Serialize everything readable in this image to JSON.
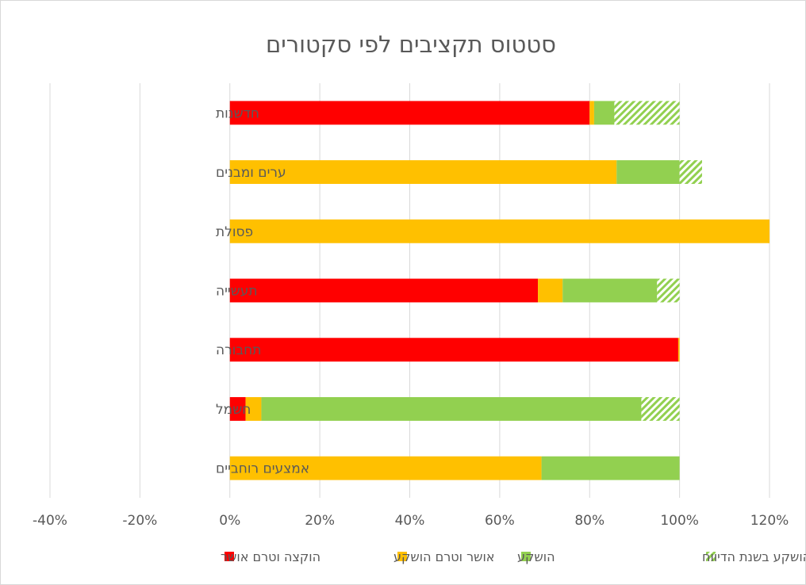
{
  "chart_data": {
    "type": "bar",
    "orientation": "horizontal",
    "stacked": true,
    "title": "סטטוס תקציבים לפי סקטורים",
    "categories": [
      "חדשנות",
      "ערים ומבנים",
      "פסולת",
      "תעשייה",
      "תחבורה",
      "חשמל",
      "אמצעים רוחביים"
    ],
    "series": [
      {
        "name": "הוקצה וטרם אושר",
        "color": "#ff0000",
        "pattern": "solid",
        "values": [
          80,
          0,
          0,
          68.5,
          99.7,
          3.5,
          0
        ]
      },
      {
        "name": "אושר וטרם הושקע",
        "color": "#ffc000",
        "pattern": "solid",
        "values": [
          1,
          86,
          120,
          5.5,
          0.3,
          3.5,
          69.3
        ]
      },
      {
        "name": "הושקע",
        "color": "#92d050",
        "pattern": "solid",
        "values": [
          4.5,
          14,
          0,
          21,
          0,
          84.5,
          30.7
        ]
      },
      {
        "name": "הושקע בשנת הדיווח",
        "color": "#92d050",
        "pattern": "hatched",
        "values": [
          14.5,
          5,
          0,
          5,
          0,
          8.5,
          0
        ]
      }
    ],
    "xlim": [
      -40,
      120
    ],
    "xticks": [
      -40,
      -20,
      0,
      20,
      40,
      60,
      80,
      100,
      120
    ],
    "tick_suffix": "%",
    "grid": "vertical",
    "legend": "bottom"
  }
}
